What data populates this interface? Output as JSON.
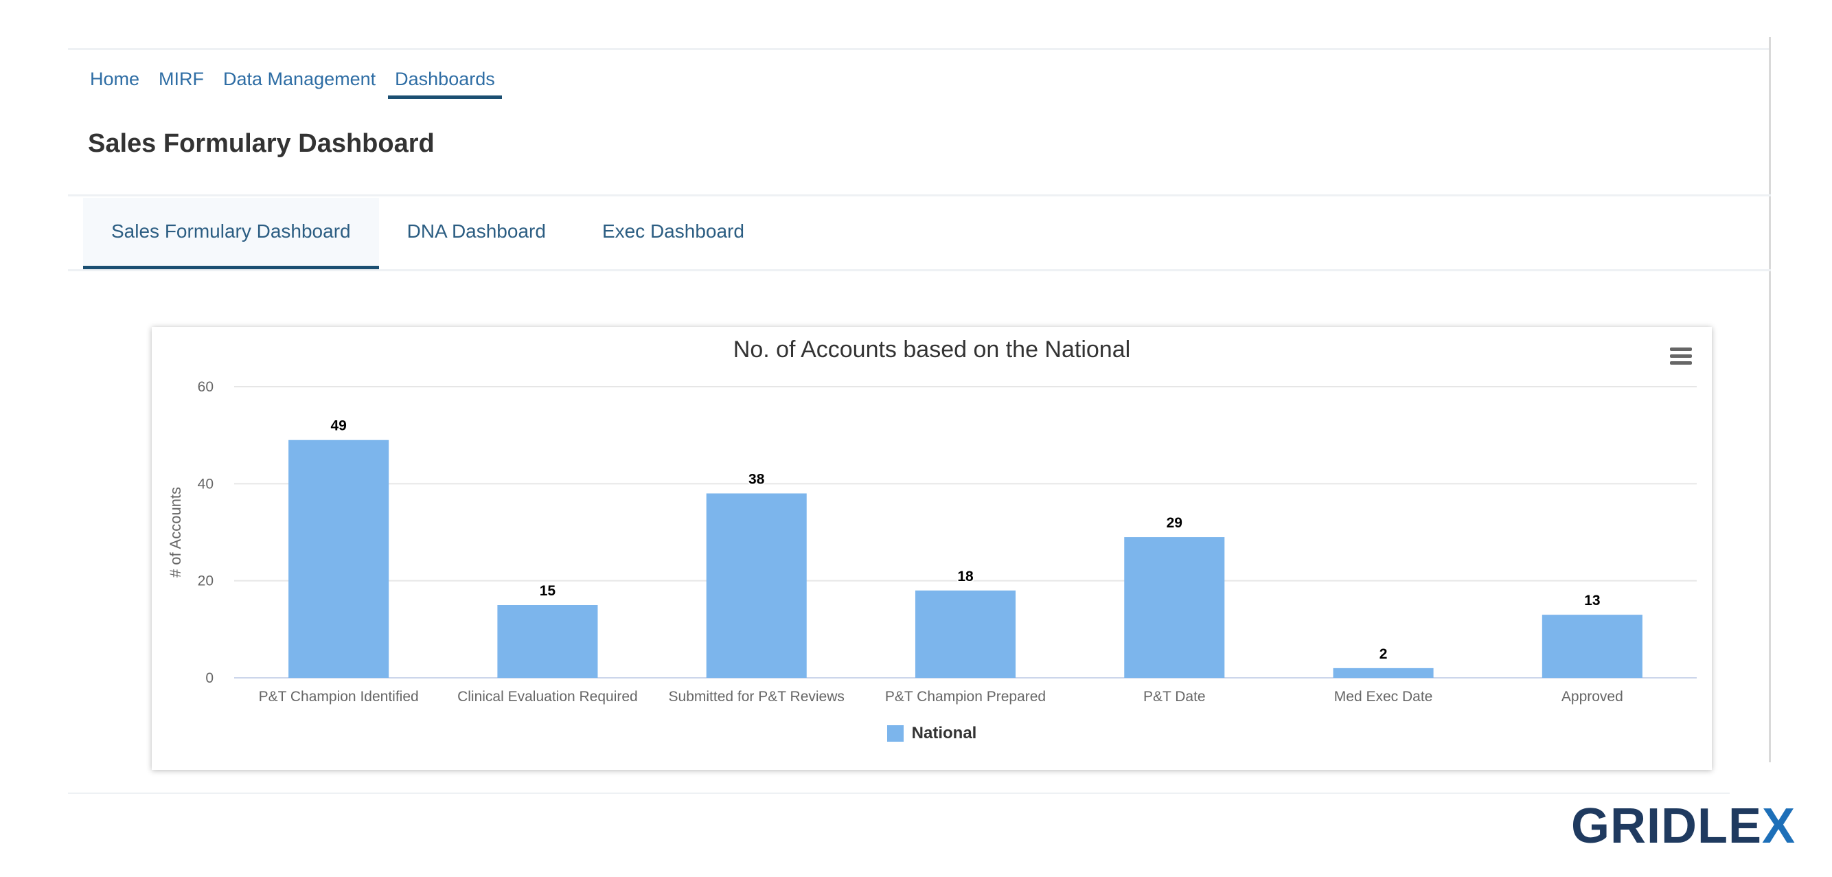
{
  "nav": {
    "items": [
      {
        "label": "Home",
        "active": false
      },
      {
        "label": "MIRF",
        "active": false
      },
      {
        "label": "Data Management",
        "active": false
      },
      {
        "label": "Dashboards",
        "active": true
      }
    ]
  },
  "page": {
    "title": "Sales Formulary Dashboard"
  },
  "tabs": [
    {
      "label": "Sales Formulary Dashboard",
      "active": true
    },
    {
      "label": "DNA Dashboard",
      "active": false
    },
    {
      "label": "Exec Dashboard",
      "active": false
    }
  ],
  "chart_data": {
    "type": "bar",
    "title": "No. of Accounts based on the National",
    "xlabel": "",
    "ylabel": "# of Accounts",
    "categories": [
      "P&T Champion Identified",
      "Clinical Evaluation Required",
      "Submitted for P&T Reviews",
      "P&T Champion Prepared",
      "P&T Date",
      "Med Exec Date",
      "Approved"
    ],
    "series": [
      {
        "name": "National",
        "values": [
          49,
          15,
          38,
          18,
          29,
          2,
          13
        ],
        "color": "#7cb5ec"
      }
    ],
    "ylim": [
      0,
      60
    ],
    "yticks": [
      0,
      20,
      40,
      60
    ],
    "grid": true,
    "legend": "bottom-center",
    "data_labels": true
  },
  "brand": {
    "name": "GRIDLE",
    "accent": "X",
    "color": "#1f3a5f",
    "accent_color": "#1d6fb8"
  }
}
